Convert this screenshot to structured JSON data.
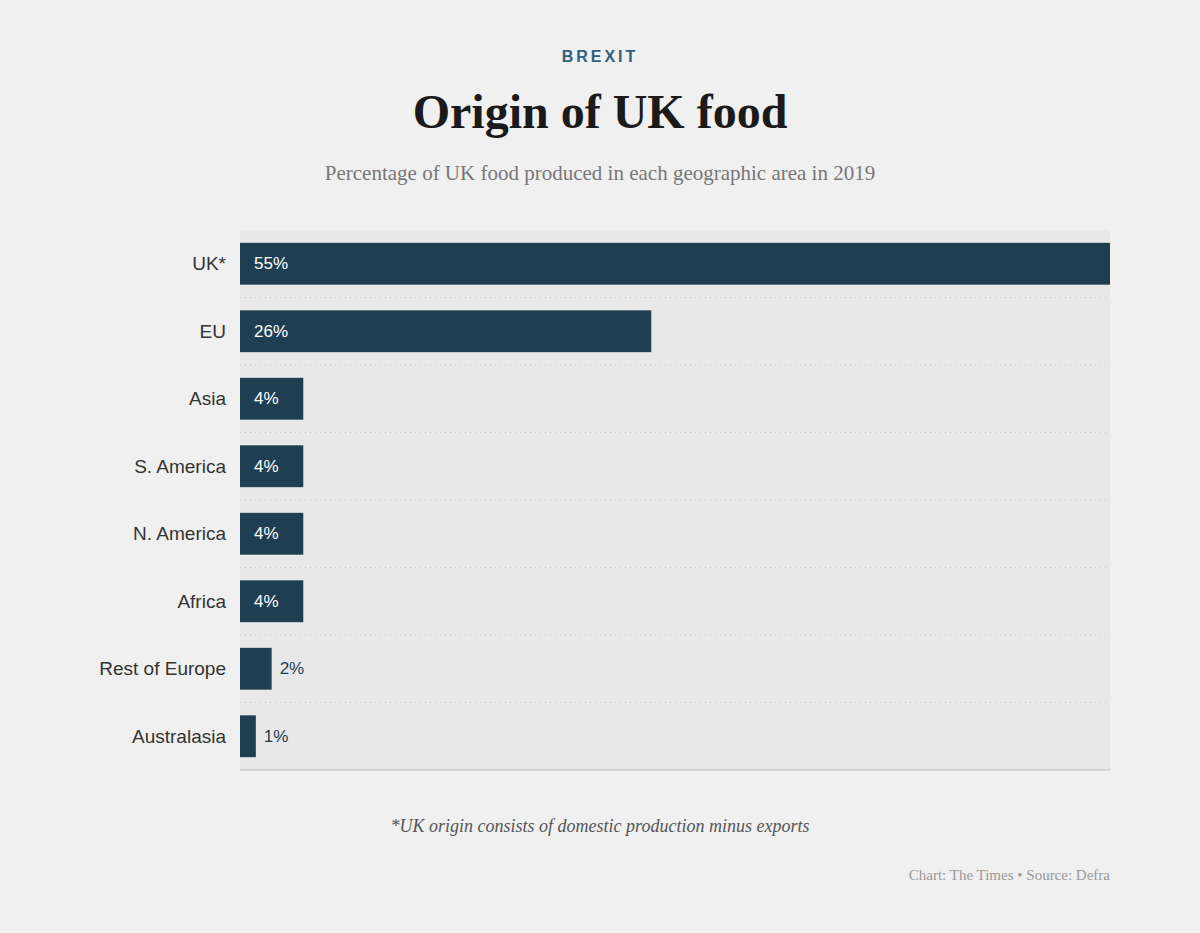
{
  "chart_data": {
    "type": "bar",
    "orientation": "horizontal",
    "supertitle": "BREXIT",
    "title": "Origin of UK food",
    "subtitle": "Percentage of UK food produced in each geographic area in 2019",
    "categories": [
      "UK*",
      "EU",
      "Asia",
      "S. America",
      "N. America",
      "Africa",
      "Rest of Europe",
      "Australasia"
    ],
    "values": [
      55,
      26,
      4,
      4,
      4,
      4,
      2,
      1
    ],
    "value_labels": [
      "55%",
      "26%",
      "4%",
      "4%",
      "4%",
      "4%",
      "2%",
      "1%"
    ],
    "data_labels": true,
    "color": "#1e3f52",
    "xlim": [
      0,
      55
    ],
    "xticks": [],
    "grid": false,
    "tick_labels": "y",
    "footnote": "*UK origin consists of domestic production minus exports",
    "source": "Chart: The Times • Source: Defra"
  }
}
